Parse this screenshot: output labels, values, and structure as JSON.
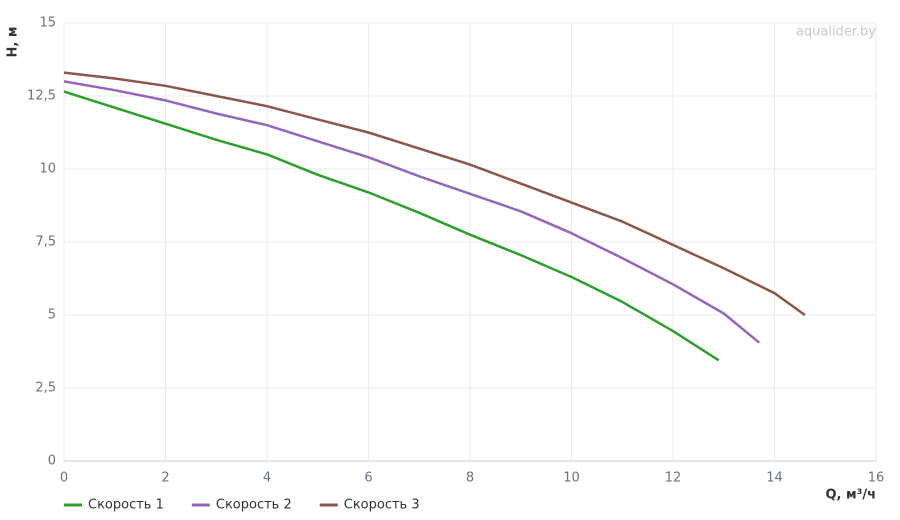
{
  "chart_data": {
    "type": "line",
    "watermark": "aqualider.by",
    "x_label": "Q, м³/ч",
    "y_label": "H, м",
    "xlim": [
      0,
      16
    ],
    "xticks": [
      0,
      2,
      4,
      6,
      8,
      10,
      12,
      14,
      16
    ],
    "ylim": [
      0,
      15
    ],
    "yticks": [
      0,
      {
        "value": 2.5,
        "label": "2,5"
      },
      5,
      {
        "value": 7.5,
        "label": "7,5"
      },
      10,
      {
        "value": 12.5,
        "label": "12,5"
      },
      15
    ],
    "grid": true,
    "legend": "bottom-left",
    "series": [
      {
        "name": "Скорость 1",
        "color": "#2ca02c",
        "x": [
          0,
          1,
          2,
          3,
          4,
          5,
          6,
          7,
          8,
          9,
          10,
          11,
          12,
          12.9
        ],
        "values": [
          12.65,
          12.1,
          11.55,
          11.0,
          10.5,
          9.8,
          9.2,
          8.5,
          7.75,
          7.05,
          6.3,
          5.45,
          4.45,
          3.45
        ]
      },
      {
        "name": "Скорость 2",
        "color": "#9467bd",
        "x": [
          0,
          1,
          2,
          3,
          4,
          5,
          6,
          7,
          8,
          9,
          10,
          11,
          12,
          13,
          13.7
        ],
        "values": [
          13.0,
          12.7,
          12.35,
          11.9,
          11.5,
          10.95,
          10.4,
          9.75,
          9.15,
          8.55,
          7.8,
          6.95,
          6.05,
          5.05,
          4.05
        ]
      },
      {
        "name": "Скорость 3",
        "color": "#8c564b",
        "x": [
          0,
          1,
          2,
          3,
          4,
          5,
          6,
          7,
          8,
          9,
          10,
          11,
          12,
          13,
          14,
          14.6
        ],
        "values": [
          13.3,
          13.1,
          12.85,
          12.5,
          12.15,
          11.7,
          11.25,
          10.7,
          10.15,
          9.5,
          8.85,
          8.2,
          7.4,
          6.6,
          5.75,
          5.0
        ]
      }
    ]
  }
}
